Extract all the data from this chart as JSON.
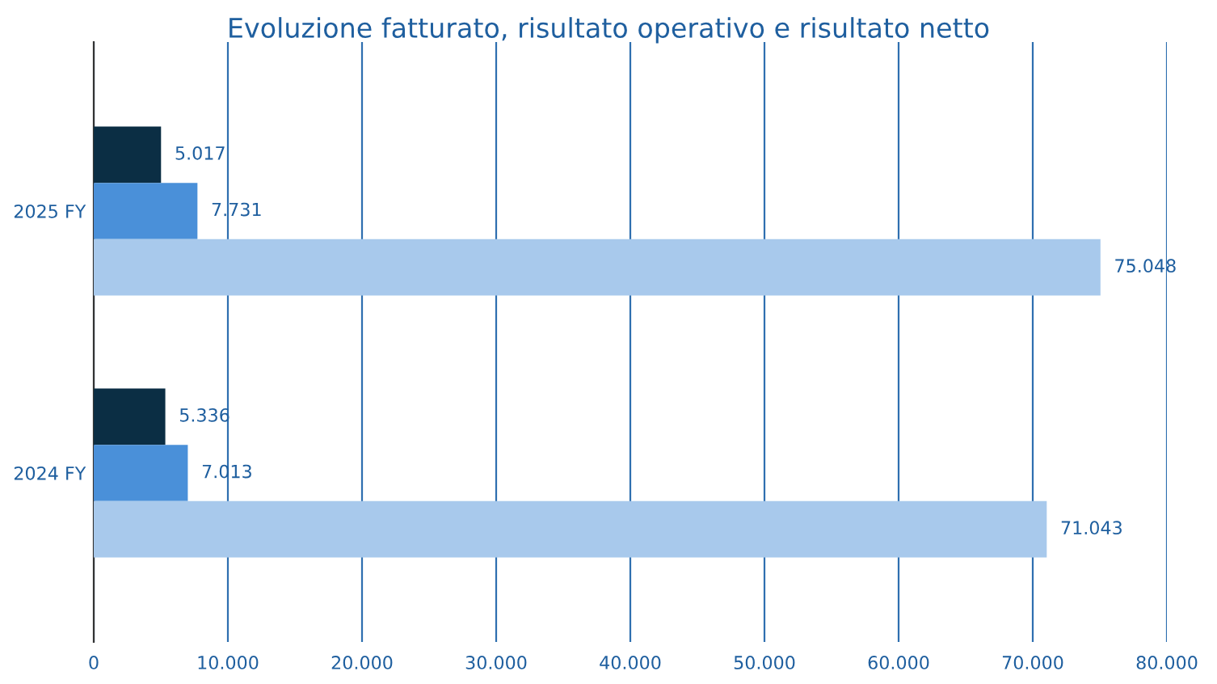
{
  "chart_data": {
    "type": "bar",
    "orientation": "horizontal",
    "title": "Evoluzione fatturato, risultato operativo e risultato netto",
    "categories": [
      "2025 FY",
      "2024 FY"
    ],
    "series": [
      {
        "color": "#0b2e44",
        "values": [
          5017,
          5336
        ],
        "value_labels": [
          "5.017",
          "5.336"
        ]
      },
      {
        "color": "#4a90d9",
        "values": [
          7731,
          7013
        ],
        "value_labels": [
          "7.731",
          "7.013"
        ]
      },
      {
        "color": "#a8c9ec",
        "values": [
          75048,
          71043
        ],
        "value_labels": [
          "75.048",
          "71.043"
        ]
      }
    ],
    "xlim": [
      0,
      80000
    ],
    "xticks": [
      0,
      {
        "value": 10000,
        "label": "10.000"
      },
      {
        "value": 20000,
        "label": "20.000"
      },
      {
        "value": 30000,
        "label": "30.000"
      },
      {
        "value": 40000,
        "label": "40.000"
      },
      {
        "value": 50000,
        "label": "50.000"
      },
      {
        "value": 60000,
        "label": "60.000"
      },
      {
        "value": 70000,
        "label": "70.000"
      },
      {
        "value": 80000,
        "label": "80.000"
      }
    ],
    "grid": "x",
    "legend": false
  }
}
